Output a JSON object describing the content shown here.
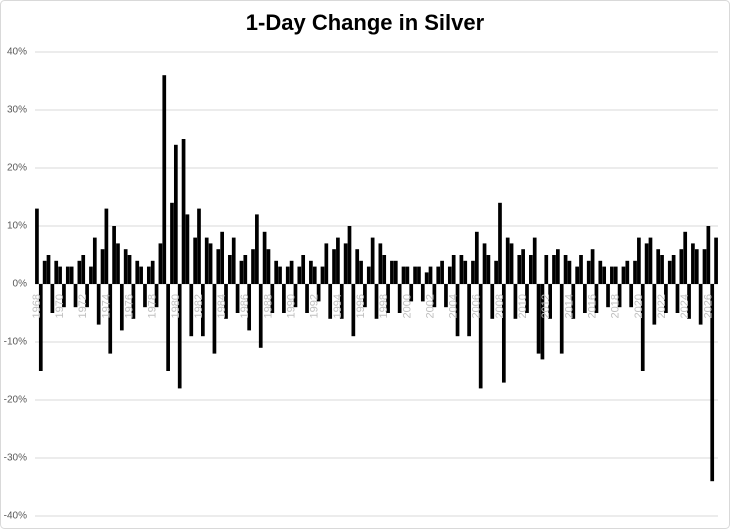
{
  "chart_data": {
    "type": "bar",
    "title": "1-Day Change in Silver",
    "categories": [
      "1968",
      null,
      null,
      null,
      null,
      null,
      "1970",
      null,
      null,
      null,
      null,
      null,
      "1972",
      null,
      null,
      null,
      null,
      null,
      "1974",
      null,
      null,
      null,
      null,
      null,
      "1976",
      null,
      null,
      null,
      null,
      null,
      "1978",
      null,
      null,
      null,
      null,
      null,
      "1980",
      null,
      null,
      null,
      null,
      null,
      "1982",
      null,
      null,
      null,
      null,
      null,
      "1984",
      null,
      null,
      null,
      null,
      null,
      "1986",
      null,
      null,
      null,
      null,
      null,
      "1988",
      null,
      null,
      null,
      null,
      null,
      "1990",
      null,
      null,
      null,
      null,
      null,
      "1992",
      null,
      null,
      null,
      null,
      null,
      "1994",
      null,
      null,
      null,
      null,
      null,
      "1996",
      null,
      null,
      null,
      null,
      null,
      "1998",
      null,
      null,
      null,
      null,
      null,
      "2000",
      null,
      null,
      null,
      null,
      null,
      "2002",
      null,
      null,
      null,
      null,
      null,
      "2004",
      null,
      null,
      null,
      null,
      null,
      "2006",
      null,
      null,
      null,
      null,
      null,
      "2008",
      null,
      null,
      null,
      null,
      null,
      "2010",
      null,
      null,
      null,
      null,
      null,
      "2012",
      null,
      null,
      null,
      null,
      null,
      "2014",
      null,
      null,
      null,
      null,
      null,
      "2016",
      null,
      null,
      null,
      null,
      null,
      "2018",
      null,
      null,
      null,
      null,
      null,
      "2020",
      null,
      null,
      null,
      null,
      null,
      "2022",
      null,
      null,
      null,
      null,
      null,
      "2024",
      null,
      null,
      null,
      null,
      null,
      "2026",
      null,
      null
    ],
    "values": [
      13,
      -15,
      4,
      5,
      -5,
      4,
      3,
      -4,
      3,
      3,
      -4,
      4,
      5,
      -4,
      3,
      8,
      -7,
      6,
      13,
      -12,
      10,
      7,
      -8,
      6,
      5,
      -6,
      4,
      3,
      -4,
      3,
      4,
      -4,
      7,
      36,
      -15,
      14,
      24,
      -18,
      25,
      12,
      -9,
      8,
      13,
      -9,
      8,
      7,
      -12,
      6,
      9,
      -6,
      5,
      8,
      -5,
      4,
      5,
      -8,
      6,
      12,
      -11,
      9,
      6,
      -5,
      4,
      3,
      -5,
      3,
      4,
      -4,
      3,
      5,
      -5,
      4,
      3,
      -3,
      3,
      7,
      -6,
      6,
      8,
      -6,
      7,
      10,
      -9,
      6,
      4,
      -4,
      3,
      8,
      -6,
      7,
      5,
      -5,
      4,
      4,
      -5,
      3,
      3,
      -3,
      3,
      3,
      -3,
      2,
      3,
      -4,
      3,
      4,
      -4,
      3,
      5,
      -9,
      5,
      4,
      -9,
      4,
      9,
      -18,
      7,
      5,
      -6,
      4,
      14,
      -17,
      8,
      7,
      -6,
      5,
      6,
      -5,
      5,
      8,
      -12,
      -13,
      5,
      -6,
      5,
      6,
      -12,
      5,
      4,
      -6,
      3,
      5,
      -5,
      4,
      6,
      -5,
      4,
      3,
      -4,
      3,
      3,
      -4,
      3,
      4,
      -4,
      4,
      8,
      -15,
      7,
      8,
      -7,
      6,
      5,
      -5,
      4,
      5,
      -5,
      6,
      9,
      -6,
      7,
      6,
      -7,
      6,
      10,
      -34,
      8
    ],
    "color": "#000000",
    "ylim": [
      -40,
      40
    ],
    "yticks": [
      {
        "value": -40,
        "label": "-40%"
      },
      {
        "value": -30,
        "label": "-30%"
      },
      {
        "value": -20,
        "label": "-20%"
      },
      {
        "value": -10,
        "label": "-10%"
      },
      {
        "value": 0,
        "label": "0%"
      },
      {
        "value": 10,
        "label": "10%"
      },
      {
        "value": 20,
        "label": "20%"
      },
      {
        "value": 30,
        "label": "30%"
      },
      {
        "value": 40,
        "label": "40%"
      }
    ],
    "grid": true
  }
}
